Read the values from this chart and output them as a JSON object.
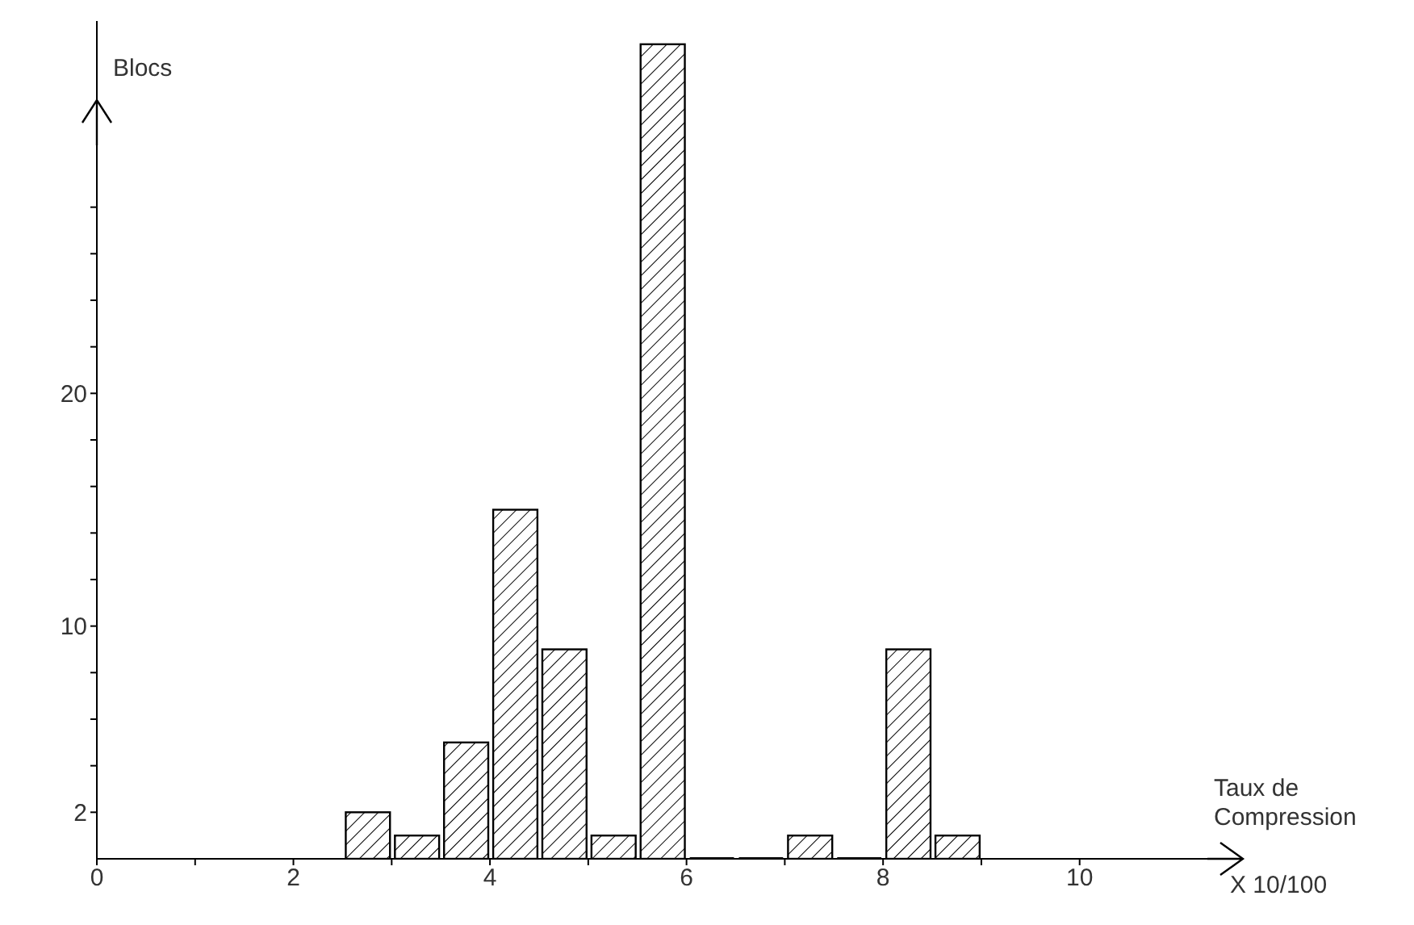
{
  "chart_data": {
    "type": "histogram",
    "ylabel": "Blocs",
    "xlabel": "Taux de Compression",
    "annotations": [
      "X 10/100"
    ],
    "bins": [
      2.5,
      3,
      3.5,
      4,
      4.5,
      5,
      5.5,
      6,
      6.5,
      7,
      7.5,
      8,
      8.5,
      9
    ],
    "values": [
      2,
      1,
      5,
      15,
      9,
      1,
      35,
      0,
      0,
      1,
      0,
      9,
      1
    ],
    "color": "#000000",
    "xlim": [
      0,
      11.3
    ],
    "ylim": [
      0,
      36
    ],
    "xticks": [
      {
        "value": 0,
        "label": "0"
      },
      {
        "value": 1,
        "label": null
      },
      2,
      {
        "value": 3,
        "label": null
      },
      4,
      {
        "value": 5,
        "label": null
      },
      6,
      {
        "value": 7,
        "label": null
      },
      8,
      {
        "value": 9,
        "label": null
      },
      10
    ],
    "yticks": [
      2,
      {
        "value": 4,
        "label": null
      },
      {
        "value": 6,
        "label": null
      },
      {
        "value": 8,
        "label": null
      },
      10,
      {
        "value": 12,
        "label": null
      },
      {
        "value": 14,
        "label": null
      },
      {
        "value": 16,
        "label": null
      },
      {
        "value": 18,
        "label": null
      },
      20,
      {
        "value": 22,
        "label": null
      },
      {
        "value": 24,
        "label": null
      },
      {
        "value": 26,
        "label": null
      },
      {
        "value": 28,
        "label": null
      }
    ],
    "grid": false,
    "legend": false
  }
}
